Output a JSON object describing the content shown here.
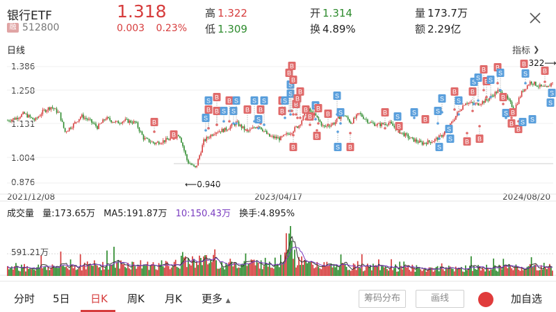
{
  "header": {
    "name": "银行ETF",
    "margin_badge": "融",
    "code": "512800",
    "price": "1.318",
    "change": "0.003",
    "change_pct": "0.23%",
    "high_label": "高",
    "high_value": "1.322",
    "low_label": "低",
    "low_value": "1.309",
    "open_label": "开",
    "open_value": "1.314",
    "turnover_label": "换",
    "turnover_value": "4.89%",
    "volume_label": "量",
    "volume_value": "173.7万",
    "amount_label": "额",
    "amount_value": "2.29亿"
  },
  "chart": {
    "period_label": "日线",
    "indicator_label": "指标",
    "y_ticks": [
      "1.386",
      "1.258",
      "1.131",
      "1.004",
      "0.876"
    ],
    "x_ticks": [
      "2021/12/08",
      "2023/04/17",
      "2024/08/20"
    ],
    "high_marker": "1.322⟶",
    "low_marker": "⟵0.940"
  },
  "volume": {
    "title": "成交量",
    "vol": "量:173.65万",
    "ma5": "MA5:191.87万",
    "ma10": "10:150.43万",
    "turnover": "换手:4.895%",
    "tick": "591.21万"
  },
  "bottom": {
    "tabs": [
      "分时",
      "5日",
      "日K",
      "周K",
      "月K",
      "更多"
    ],
    "more_arrow": "▲",
    "chip_btn": "筹码分布",
    "draw_btn": "画线",
    "add_fav": "加自选"
  },
  "colors": {
    "up": "#d63c3c",
    "down": "#2e8b2e",
    "buy_marker": "#e06a6a",
    "sell_marker": "#5a9fdc"
  },
  "chart_data": {
    "type": "candlestick",
    "x_range": [
      "2021/12/08",
      "2024/08/20"
    ],
    "ylim": [
      0.876,
      1.386
    ],
    "lowest_low": 0.94,
    "last_high": 1.322,
    "price_path": [
      [
        0,
        1.15
      ],
      [
        0.015,
        1.16
      ],
      [
        0.03,
        1.18
      ],
      [
        0.05,
        1.15
      ],
      [
        0.065,
        1.19
      ],
      [
        0.08,
        1.21
      ],
      [
        0.095,
        1.18
      ],
      [
        0.105,
        1.1
      ],
      [
        0.12,
        1.13
      ],
      [
        0.135,
        1.17
      ],
      [
        0.15,
        1.15
      ],
      [
        0.165,
        1.12
      ],
      [
        0.18,
        1.16
      ],
      [
        0.2,
        1.14
      ],
      [
        0.215,
        1.15
      ],
      [
        0.235,
        1.14
      ],
      [
        0.25,
        1.07
      ],
      [
        0.27,
        1.05
      ],
      [
        0.285,
        1.06
      ],
      [
        0.3,
        1.07
      ],
      [
        0.315,
        1.09
      ],
      [
        0.33,
        0.97
      ],
      [
        0.345,
        0.94
      ],
      [
        0.36,
        1.06
      ],
      [
        0.38,
        1.1
      ],
      [
        0.4,
        1.11
      ],
      [
        0.42,
        1.14
      ],
      [
        0.44,
        1.1
      ],
      [
        0.46,
        1.13
      ],
      [
        0.48,
        1.08
      ],
      [
        0.5,
        1.07
      ],
      [
        0.52,
        1.1
      ],
      [
        0.535,
        1.13
      ],
      [
        0.55,
        1.2
      ],
      [
        0.565,
        1.17
      ],
      [
        0.58,
        1.12
      ],
      [
        0.6,
        1.14
      ],
      [
        0.615,
        1.18
      ],
      [
        0.63,
        1.14
      ],
      [
        0.645,
        1.18
      ],
      [
        0.665,
        1.14
      ],
      [
        0.68,
        1.13
      ],
      [
        0.7,
        1.14
      ],
      [
        0.72,
        1.1
      ],
      [
        0.74,
        1.07
      ],
      [
        0.76,
        1.05
      ],
      [
        0.78,
        1.06
      ],
      [
        0.795,
        1.08
      ],
      [
        0.81,
        1.12
      ],
      [
        0.825,
        1.18
      ],
      [
        0.84,
        1.23
      ],
      [
        0.86,
        1.22
      ],
      [
        0.88,
        1.24
      ],
      [
        0.9,
        1.28
      ],
      [
        0.915,
        1.25
      ],
      [
        0.93,
        1.2
      ],
      [
        0.945,
        1.28
      ],
      [
        0.96,
        1.32
      ],
      [
        0.975,
        1.3
      ],
      [
        0.99,
        1.29
      ],
      [
        1.0,
        1.32
      ]
    ],
    "volume_tick": "591.21万",
    "volume_ref_level": 5.9121,
    "volume_shape": [
      [
        0,
        0.7
      ],
      [
        0.1,
        0.8
      ],
      [
        0.2,
        1.0
      ],
      [
        0.3,
        0.9
      ],
      [
        0.35,
        1.4
      ],
      [
        0.4,
        1.0
      ],
      [
        0.45,
        1.1
      ],
      [
        0.5,
        1.1
      ],
      [
        0.515,
        3.6
      ],
      [
        0.53,
        1.3
      ],
      [
        0.55,
        1.0
      ],
      [
        0.6,
        0.8
      ],
      [
        0.7,
        0.7
      ],
      [
        0.8,
        0.6
      ],
      [
        0.9,
        0.7
      ],
      [
        1.0,
        0.8
      ]
    ],
    "volume_unit": "万"
  }
}
